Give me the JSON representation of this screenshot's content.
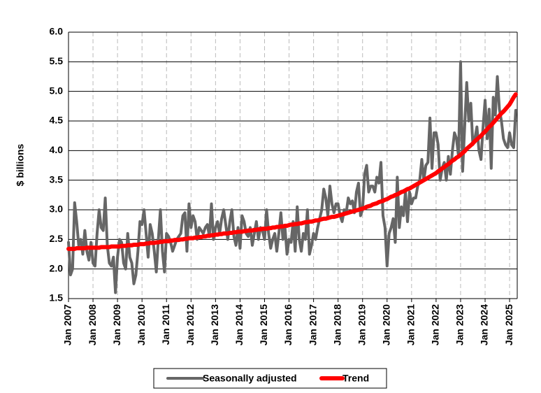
{
  "chart_data": {
    "type": "line",
    "y_label": "$ billions",
    "categories": [
      "Jan 2007",
      null,
      null,
      null,
      null,
      null,
      null,
      null,
      null,
      null,
      null,
      null,
      "Jan 2008",
      null,
      null,
      null,
      null,
      null,
      null,
      null,
      null,
      null,
      null,
      null,
      "Jan 2009",
      null,
      null,
      null,
      null,
      null,
      null,
      null,
      null,
      null,
      null,
      null,
      "Jan 2010",
      null,
      null,
      null,
      null,
      null,
      null,
      null,
      null,
      null,
      null,
      null,
      "Jan 2011",
      null,
      null,
      null,
      null,
      null,
      null,
      null,
      null,
      null,
      null,
      null,
      "Jan 2012",
      null,
      null,
      null,
      null,
      null,
      null,
      null,
      null,
      null,
      null,
      null,
      "Jan 2013",
      null,
      null,
      null,
      null,
      null,
      null,
      null,
      null,
      null,
      null,
      null,
      "Jan 2014",
      null,
      null,
      null,
      null,
      null,
      null,
      null,
      null,
      null,
      null,
      null,
      "Jan 2015",
      null,
      null,
      null,
      null,
      null,
      null,
      null,
      null,
      null,
      null,
      null,
      "Jan 2016",
      null,
      null,
      null,
      null,
      null,
      null,
      null,
      null,
      null,
      null,
      null,
      "Jan 2017",
      null,
      null,
      null,
      null,
      null,
      null,
      null,
      null,
      null,
      null,
      null,
      "Jan 2018",
      null,
      null,
      null,
      null,
      null,
      null,
      null,
      null,
      null,
      null,
      null,
      "Jan 2019",
      null,
      null,
      null,
      null,
      null,
      null,
      null,
      null,
      null,
      null,
      null,
      "Jan 2020",
      null,
      null,
      null,
      null,
      null,
      null,
      null,
      null,
      null,
      null,
      null,
      "Jan 2021",
      null,
      null,
      null,
      null,
      null,
      null,
      null,
      null,
      null,
      null,
      null,
      "Jan 2022",
      null,
      null,
      null,
      null,
      null,
      null,
      null,
      null,
      null,
      null,
      null,
      "Jan 2023",
      null,
      null,
      null,
      null,
      null,
      null,
      null,
      null,
      null,
      null,
      null,
      "Jan 2024",
      null,
      null,
      null,
      null,
      null,
      null,
      null,
      null,
      null,
      null,
      null,
      "Jan 2025",
      null,
      null,
      null
    ],
    "series": [
      {
        "name": "Seasonally adjusted",
        "color": "#666666",
        "width": 4,
        "values": [
          2.45,
          1.9,
          2.0,
          3.12,
          2.8,
          2.4,
          2.5,
          2.25,
          2.65,
          2.3,
          2.15,
          2.45,
          2.1,
          2.05,
          2.6,
          3.0,
          2.7,
          2.65,
          3.2,
          2.4,
          2.1,
          2.05,
          2.2,
          1.6,
          2.2,
          2.5,
          2.45,
          2.1,
          2.0,
          2.6,
          2.2,
          2.1,
          1.75,
          1.9,
          2.3,
          2.8,
          2.75,
          3.0,
          2.6,
          2.2,
          2.75,
          2.6,
          2.3,
          1.95,
          2.5,
          3.0,
          2.3,
          1.95,
          2.6,
          2.55,
          2.45,
          2.3,
          2.4,
          2.5,
          2.55,
          2.6,
          2.9,
          2.95,
          2.3,
          3.1,
          2.7,
          2.9,
          2.8,
          2.5,
          2.7,
          2.65,
          2.6,
          2.7,
          2.75,
          2.55,
          3.1,
          2.5,
          2.7,
          2.8,
          2.6,
          2.85,
          3.0,
          2.75,
          2.5,
          2.8,
          3.0,
          2.55,
          2.4,
          2.7,
          2.35,
          2.9,
          2.8,
          2.6,
          2.55,
          2.7,
          2.4,
          2.6,
          2.8,
          2.5,
          2.7,
          2.65,
          2.5,
          3.0,
          2.6,
          2.35,
          2.5,
          2.6,
          2.3,
          2.6,
          2.95,
          2.5,
          2.7,
          2.25,
          2.5,
          2.45,
          2.8,
          2.3,
          3.05,
          2.5,
          2.3,
          2.6,
          2.5,
          3.0,
          2.25,
          2.4,
          2.6,
          2.5,
          2.7,
          2.85,
          3.0,
          3.35,
          3.2,
          2.9,
          3.4,
          3.1,
          2.95,
          3.1,
          3.1,
          2.9,
          2.8,
          3.0,
          2.95,
          3.2,
          3.1,
          3.15,
          2.95,
          3.3,
          3.45,
          2.9,
          3.0,
          3.6,
          3.75,
          3.3,
          3.4,
          3.4,
          3.3,
          3.55,
          3.45,
          3.8,
          2.9,
          2.7,
          2.05,
          2.6,
          2.7,
          2.85,
          2.45,
          3.55,
          2.7,
          3.05,
          2.9,
          3.3,
          2.8,
          3.3,
          3.1,
          3.2,
          3.2,
          3.4,
          3.5,
          3.85,
          3.5,
          3.75,
          3.8,
          4.55,
          3.7,
          4.3,
          4.3,
          4.1,
          3.5,
          3.7,
          3.8,
          3.5,
          3.9,
          3.6,
          4.0,
          4.3,
          4.2,
          3.9,
          5.5,
          3.65,
          4.4,
          5.15,
          4.5,
          4.8,
          4.1,
          4.2,
          4.4,
          4.0,
          3.85,
          4.4,
          4.85,
          4.2,
          4.7,
          3.7,
          4.9,
          4.6,
          5.25,
          4.7,
          4.5,
          4.2,
          4.1,
          4.05,
          4.3,
          4.1,
          4.05,
          4.68
        ]
      },
      {
        "name": "Trend",
        "color": "#ff0000",
        "width": 6,
        "values": [
          2.34,
          2.34,
          2.34,
          2.34,
          2.35,
          2.35,
          2.35,
          2.35,
          2.35,
          2.36,
          2.36,
          2.36,
          2.36,
          2.36,
          2.36,
          2.36,
          2.37,
          2.37,
          2.37,
          2.37,
          2.37,
          2.38,
          2.38,
          2.38,
          2.38,
          2.38,
          2.39,
          2.39,
          2.39,
          2.4,
          2.4,
          2.4,
          2.41,
          2.41,
          2.41,
          2.42,
          2.42,
          2.42,
          2.43,
          2.43,
          2.44,
          2.44,
          2.44,
          2.45,
          2.45,
          2.46,
          2.46,
          2.47,
          2.47,
          2.47,
          2.48,
          2.48,
          2.49,
          2.49,
          2.49,
          2.5,
          2.5,
          2.51,
          2.51,
          2.52,
          2.52,
          2.52,
          2.53,
          2.53,
          2.54,
          2.54,
          2.55,
          2.55,
          2.56,
          2.56,
          2.57,
          2.57,
          2.58,
          2.58,
          2.59,
          2.59,
          2.6,
          2.6,
          2.6,
          2.61,
          2.61,
          2.62,
          2.62,
          2.63,
          2.63,
          2.63,
          2.64,
          2.64,
          2.65,
          2.65,
          2.65,
          2.66,
          2.66,
          2.67,
          2.67,
          2.68,
          2.68,
          2.68,
          2.69,
          2.69,
          2.7,
          2.7,
          2.71,
          2.71,
          2.72,
          2.72,
          2.73,
          2.73,
          2.74,
          2.75,
          2.75,
          2.76,
          2.76,
          2.77,
          2.77,
          2.78,
          2.79,
          2.79,
          2.8,
          2.8,
          2.81,
          2.82,
          2.82,
          2.83,
          2.84,
          2.85,
          2.85,
          2.86,
          2.87,
          2.88,
          2.88,
          2.89,
          2.9,
          2.91,
          2.92,
          2.93,
          2.94,
          2.95,
          2.96,
          2.97,
          2.98,
          2.99,
          3.0,
          3.01,
          3.02,
          3.03,
          3.05,
          3.06,
          3.07,
          3.09,
          3.1,
          3.11,
          3.13,
          3.14,
          3.15,
          3.17,
          3.18,
          3.2,
          3.22,
          3.23,
          3.25,
          3.26,
          3.28,
          3.3,
          3.31,
          3.33,
          3.35,
          3.36,
          3.38,
          3.4,
          3.42,
          3.44,
          3.46,
          3.48,
          3.5,
          3.52,
          3.54,
          3.56,
          3.58,
          3.6,
          3.62,
          3.65,
          3.67,
          3.7,
          3.72,
          3.75,
          3.77,
          3.8,
          3.83,
          3.85,
          3.88,
          3.9,
          3.93,
          3.96,
          3.99,
          4.03,
          4.06,
          4.09,
          4.12,
          4.16,
          4.19,
          4.22,
          4.25,
          4.29,
          4.32,
          4.36,
          4.4,
          4.43,
          4.47,
          4.51,
          4.55,
          4.59,
          4.63,
          4.66,
          4.7,
          4.74,
          4.78,
          4.84,
          4.9,
          4.95
        ]
      }
    ],
    "ylim": [
      1.5,
      6.0
    ],
    "yticks": [
      1.5,
      {
        "value": 2,
        "label": "2.0"
      },
      2.5,
      {
        "value": 3,
        "label": "3.0"
      },
      3.5,
      {
        "value": 4,
        "label": "4.0"
      },
      4.5,
      {
        "value": 5,
        "label": "5.0"
      },
      5.5,
      {
        "value": 6,
        "label": "6.0"
      }
    ],
    "grid": true,
    "legend": "bottom"
  }
}
